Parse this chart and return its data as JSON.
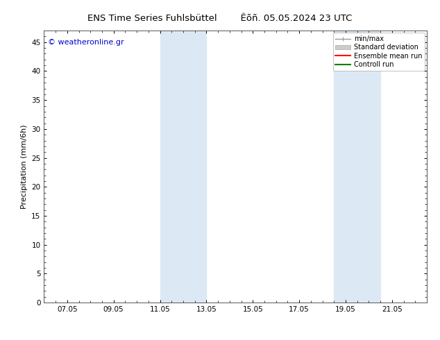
{
  "title_left": "ENS Time Series Fuhlsbüttel",
  "title_right": "Êõñ. 05.05.2024 23 UTC",
  "ylabel": "Precipitation (mm/6h)",
  "watermark": "© weatheronline.gr",
  "watermark_color": "#0000cc",
  "xlim_start": 6.0,
  "xlim_end": 22.5,
  "ylim_bottom": 0,
  "ylim_top": 47,
  "yticks": [
    0,
    5,
    10,
    15,
    20,
    25,
    30,
    35,
    40,
    45
  ],
  "xtick_labels": [
    "07.05",
    "09.05",
    "11.05",
    "13.05",
    "15.05",
    "17.05",
    "19.05",
    "21.05"
  ],
  "xtick_positions": [
    7,
    9,
    11,
    13,
    15,
    17,
    19,
    21
  ],
  "shaded_regions": [
    {
      "xmin": 11.0,
      "xmax": 12.5,
      "color": "#dce9f5"
    },
    {
      "xmin": 12.5,
      "xmax": 13.0,
      "color": "#dce9f5"
    },
    {
      "xmin": 18.5,
      "xmax": 19.5,
      "color": "#dce9f5"
    },
    {
      "xmin": 19.5,
      "xmax": 20.5,
      "color": "#dce9f5"
    }
  ],
  "legend_entries": [
    {
      "label": "min/max",
      "color": "#999999",
      "lw": 1.0
    },
    {
      "label": "Standard deviation",
      "color": "#cccccc",
      "lw": 5
    },
    {
      "label": "Ensemble mean run",
      "color": "#ff0000",
      "lw": 1.5
    },
    {
      "label": "Controll run",
      "color": "#008000",
      "lw": 1.5
    }
  ],
  "bg_color": "#ffffff",
  "plot_bg_color": "#ffffff",
  "spine_color": "#555555",
  "tick_color": "#000000",
  "font_size_title": 9.5,
  "font_size_axis": 8,
  "font_size_tick": 7.5,
  "font_size_legend": 7,
  "font_size_watermark": 8
}
